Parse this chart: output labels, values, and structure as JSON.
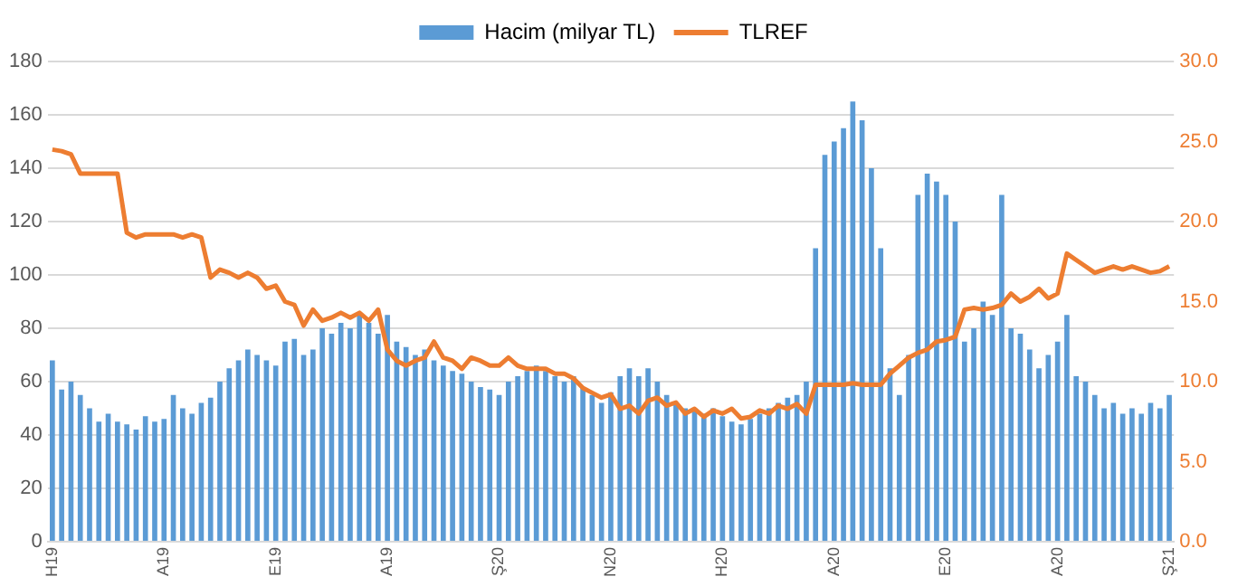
{
  "chart_data": {
    "type": "bar",
    "legend": "top",
    "grid": "y",
    "categories": [
      "H19",
      null,
      null,
      null,
      null,
      null,
      null,
      null,
      null,
      null,
      null,
      null,
      "A19",
      null,
      null,
      null,
      null,
      null,
      null,
      null,
      null,
      null,
      null,
      null,
      "E19",
      null,
      null,
      null,
      null,
      null,
      null,
      null,
      null,
      null,
      null,
      null,
      "A19",
      null,
      null,
      null,
      null,
      null,
      null,
      null,
      null,
      null,
      null,
      null,
      "Ş20",
      null,
      null,
      null,
      null,
      null,
      null,
      null,
      null,
      null,
      null,
      null,
      "N20",
      null,
      null,
      null,
      null,
      null,
      null,
      null,
      null,
      null,
      null,
      null,
      "H20",
      null,
      null,
      null,
      null,
      null,
      null,
      null,
      null,
      null,
      null,
      null,
      "A20",
      null,
      null,
      null,
      null,
      null,
      null,
      null,
      null,
      null,
      null,
      null,
      "E20",
      null,
      null,
      null,
      null,
      null,
      null,
      null,
      null,
      null,
      null,
      null,
      "A20",
      null,
      null,
      null,
      null,
      null,
      null,
      null,
      null,
      null,
      null,
      null,
      "Ş21"
    ],
    "ylim": [
      0,
      180
    ],
    "yticks": [
      0,
      20,
      40,
      60,
      80,
      100,
      120,
      140,
      160,
      180
    ],
    "y2lim": [
      0,
      30
    ],
    "y2ticks": [
      {
        "value": 0,
        "label": "0.0"
      },
      {
        "value": 5,
        "label": "5.0"
      },
      {
        "value": 10,
        "label": "10.0"
      },
      {
        "value": 15,
        "label": "15.0"
      },
      {
        "value": 20,
        "label": "20.0"
      },
      {
        "value": 25,
        "label": "25.0"
      },
      {
        "value": 30,
        "label": "30.0"
      }
    ],
    "series": [
      {
        "name": "Hacim (milyar TL)",
        "color": "#5b9bd5",
        "values": [
          68,
          57,
          60,
          55,
          50,
          45,
          48,
          45,
          44,
          42,
          47,
          45,
          46,
          55,
          50,
          48,
          52,
          54,
          60,
          65,
          68,
          72,
          70,
          68,
          66,
          75,
          76,
          70,
          72,
          80,
          78,
          82,
          80,
          85,
          82,
          78,
          85,
          75,
          73,
          70,
          72,
          68,
          66,
          64,
          63,
          60,
          58,
          57,
          55,
          60,
          62,
          64,
          66,
          64,
          62,
          60,
          62,
          58,
          55,
          52,
          56,
          62,
          65,
          62,
          65,
          60,
          55,
          52,
          50,
          50,
          48,
          50,
          47,
          45,
          44,
          46,
          48,
          50,
          52,
          54,
          55,
          60,
          110,
          145,
          150,
          155,
          165,
          158,
          140,
          110,
          65,
          55,
          70,
          130,
          138,
          135,
          130,
          120,
          75,
          80,
          90,
          85,
          130,
          80,
          78,
          72,
          65,
          70,
          75,
          85,
          62,
          60,
          55,
          50,
          52,
          48,
          50,
          48,
          52,
          50,
          55
        ]
      },
      {
        "name": "TLREF",
        "type": "line",
        "axis": "y2",
        "color": "#ed7d31",
        "marker": "none",
        "line_style": "solid",
        "values": [
          24.5,
          24.4,
          24.2,
          23.0,
          23.0,
          23.0,
          23.0,
          23.0,
          19.3,
          19.0,
          19.2,
          19.2,
          19.2,
          19.2,
          19.0,
          19.2,
          19.0,
          16.5,
          17.0,
          16.8,
          16.5,
          16.8,
          16.5,
          15.8,
          16.0,
          15.0,
          14.8,
          13.5,
          14.5,
          13.8,
          14.0,
          14.3,
          14.0,
          14.3,
          13.8,
          14.5,
          12.0,
          11.3,
          11.0,
          11.3,
          11.5,
          12.5,
          11.5,
          11.3,
          10.8,
          11.5,
          11.3,
          11.0,
          11.0,
          11.5,
          11.0,
          10.8,
          10.8,
          10.8,
          10.5,
          10.5,
          10.2,
          9.6,
          9.3,
          9.0,
          9.2,
          8.3,
          8.5,
          8.0,
          8.8,
          9.0,
          8.5,
          8.7,
          8.0,
          8.3,
          7.8,
          8.2,
          8.0,
          8.3,
          7.7,
          7.8,
          8.2,
          8.0,
          8.5,
          8.3,
          8.6,
          8.0,
          9.8,
          9.8,
          9.8,
          9.8,
          9.9,
          9.8,
          9.8,
          9.8,
          10.5,
          11.0,
          11.5,
          11.8,
          12.0,
          12.5,
          12.6,
          12.8,
          14.5,
          14.6,
          14.5,
          14.6,
          14.8,
          15.5,
          15.0,
          15.3,
          15.8,
          15.2,
          15.5,
          18.0,
          17.6,
          17.2,
          16.8,
          17.0,
          17.2,
          17.0,
          17.2,
          17.0,
          16.8,
          16.9,
          17.2
        ]
      }
    ]
  }
}
